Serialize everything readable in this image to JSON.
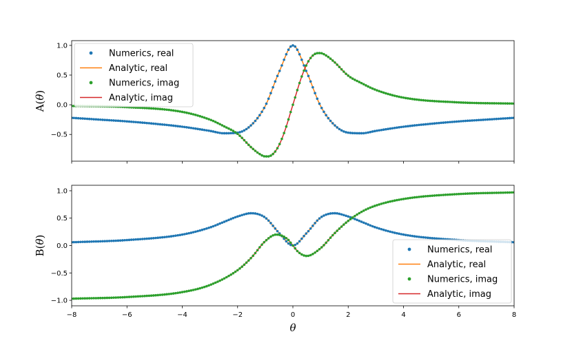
{
  "chart_data": {
    "type": "line",
    "grid": false,
    "colors": {
      "numerics_real": "#1f77b4",
      "analytic_real": "#ff7f0e",
      "numerics_imag": "#2ca02c",
      "analytic_imag": "#d62728"
    },
    "xlabel": "θ",
    "xlim": [
      -8,
      8
    ],
    "xticks": [
      -8,
      -6,
      -4,
      -2,
      0,
      2,
      4,
      6,
      8
    ],
    "xtick_labels": [
      "−8",
      "−6",
      "−4",
      "−2",
      "0",
      "2",
      "4",
      "6",
      "8"
    ],
    "panels": [
      {
        "ylabel_parts": [
          "A(",
          "θ",
          ")"
        ],
        "ylim": [
          -0.95,
          1.08
        ],
        "yticks": [
          -0.5,
          0.0,
          0.5,
          1.0
        ],
        "ytick_labels": [
          "−0.5",
          "0.0",
          "0.5",
          "1.0"
        ],
        "legend_placement": "upper-left",
        "series": [
          {
            "name": "Numerics, real",
            "style": "points",
            "color": "#1f77b4",
            "component": "real"
          },
          {
            "name": "Analytic, real",
            "style": "line",
            "color": "#ff7f0e",
            "component": "real"
          },
          {
            "name": "Numerics, imag",
            "style": "points",
            "color": "#2ca02c",
            "component": "imag"
          },
          {
            "name": "Analytic, imag",
            "style": "line",
            "color": "#d62728",
            "component": "imag"
          }
        ],
        "curves": {
          "real": {
            "x": [
              -8,
              -7,
              -6,
              -5,
              -4,
              -3,
              -2.5,
              -2,
              -1.5,
              -1,
              -0.5,
              0,
              0.5,
              1,
              1.5,
              2,
              2.5,
              3,
              4,
              5,
              6,
              7,
              8
            ],
            "y": [
              -0.22,
              -0.25,
              -0.28,
              -0.32,
              -0.37,
              -0.44,
              -0.48,
              -0.47,
              -0.34,
              -0.02,
              0.55,
              1.0,
              0.55,
              -0.02,
              -0.34,
              -0.47,
              -0.48,
              -0.44,
              -0.37,
              -0.32,
              -0.28,
              -0.25,
              -0.22
            ]
          },
          "imag": {
            "x": [
              -8,
              -6,
              -4,
              -3,
              -2.5,
              -2,
              -1.5,
              -1.2,
              -1,
              -0.9,
              -0.7,
              -0.5,
              -0.3,
              0,
              0.3,
              0.5,
              0.7,
              0.9,
              1.0,
              1.2,
              1.5,
              2,
              2.5,
              3,
              4,
              6,
              8
            ],
            "y": [
              -0.02,
              -0.04,
              -0.12,
              -0.25,
              -0.36,
              -0.49,
              -0.72,
              -0.83,
              -0.87,
              -0.87,
              -0.82,
              -0.68,
              -0.45,
              0.0,
              0.45,
              0.68,
              0.82,
              0.87,
              0.87,
              0.83,
              0.72,
              0.49,
              0.36,
              0.25,
              0.12,
              0.04,
              0.02
            ]
          }
        }
      },
      {
        "ylabel_parts": [
          "B(",
          "θ",
          ")"
        ],
        "ylim": [
          -1.1,
          1.1
        ],
        "yticks": [
          -1.0,
          -0.5,
          0.0,
          0.5,
          1.0
        ],
        "ytick_labels": [
          "−1.0",
          "−0.5",
          "0.0",
          "0.5",
          "1.0"
        ],
        "legend_placement": "lower-right",
        "series": [
          {
            "name": "Numerics, real",
            "style": "points",
            "color": "#1f77b4",
            "component": "real"
          },
          {
            "name": "Analytic, real",
            "style": "line",
            "color": "#ff7f0e",
            "component": "real"
          },
          {
            "name": "Numerics, imag",
            "style": "points",
            "color": "#2ca02c",
            "component": "imag"
          },
          {
            "name": "Analytic, imag",
            "style": "line",
            "color": "#d62728",
            "component": "imag"
          }
        ],
        "curves": {
          "real": {
            "x": [
              -8,
              -6,
              -4,
              -3,
              -2.5,
              -2,
              -1.5,
              -1,
              -0.5,
              0,
              0.5,
              1,
              1.5,
              2,
              2.5,
              3,
              4,
              6,
              8
            ],
            "y": [
              0.06,
              0.1,
              0.2,
              0.33,
              0.43,
              0.53,
              0.59,
              0.51,
              0.23,
              0.0,
              0.23,
              0.51,
              0.59,
              0.53,
              0.43,
              0.33,
              0.2,
              0.1,
              0.06
            ]
          },
          "imag": {
            "x": [
              -8,
              -6,
              -4,
              -3,
              -2,
              -1.5,
              -1,
              -0.6,
              -0.2,
              0,
              0.2,
              0.5,
              1,
              1.5,
              2,
              2.5,
              3,
              4,
              6,
              8
            ],
            "y": [
              -0.97,
              -0.94,
              -0.85,
              -0.72,
              -0.45,
              -0.22,
              0.08,
              0.2,
              0.12,
              0.0,
              -0.12,
              -0.19,
              -0.05,
              0.22,
              0.45,
              0.62,
              0.73,
              0.85,
              0.94,
              0.97
            ]
          }
        }
      }
    ]
  }
}
